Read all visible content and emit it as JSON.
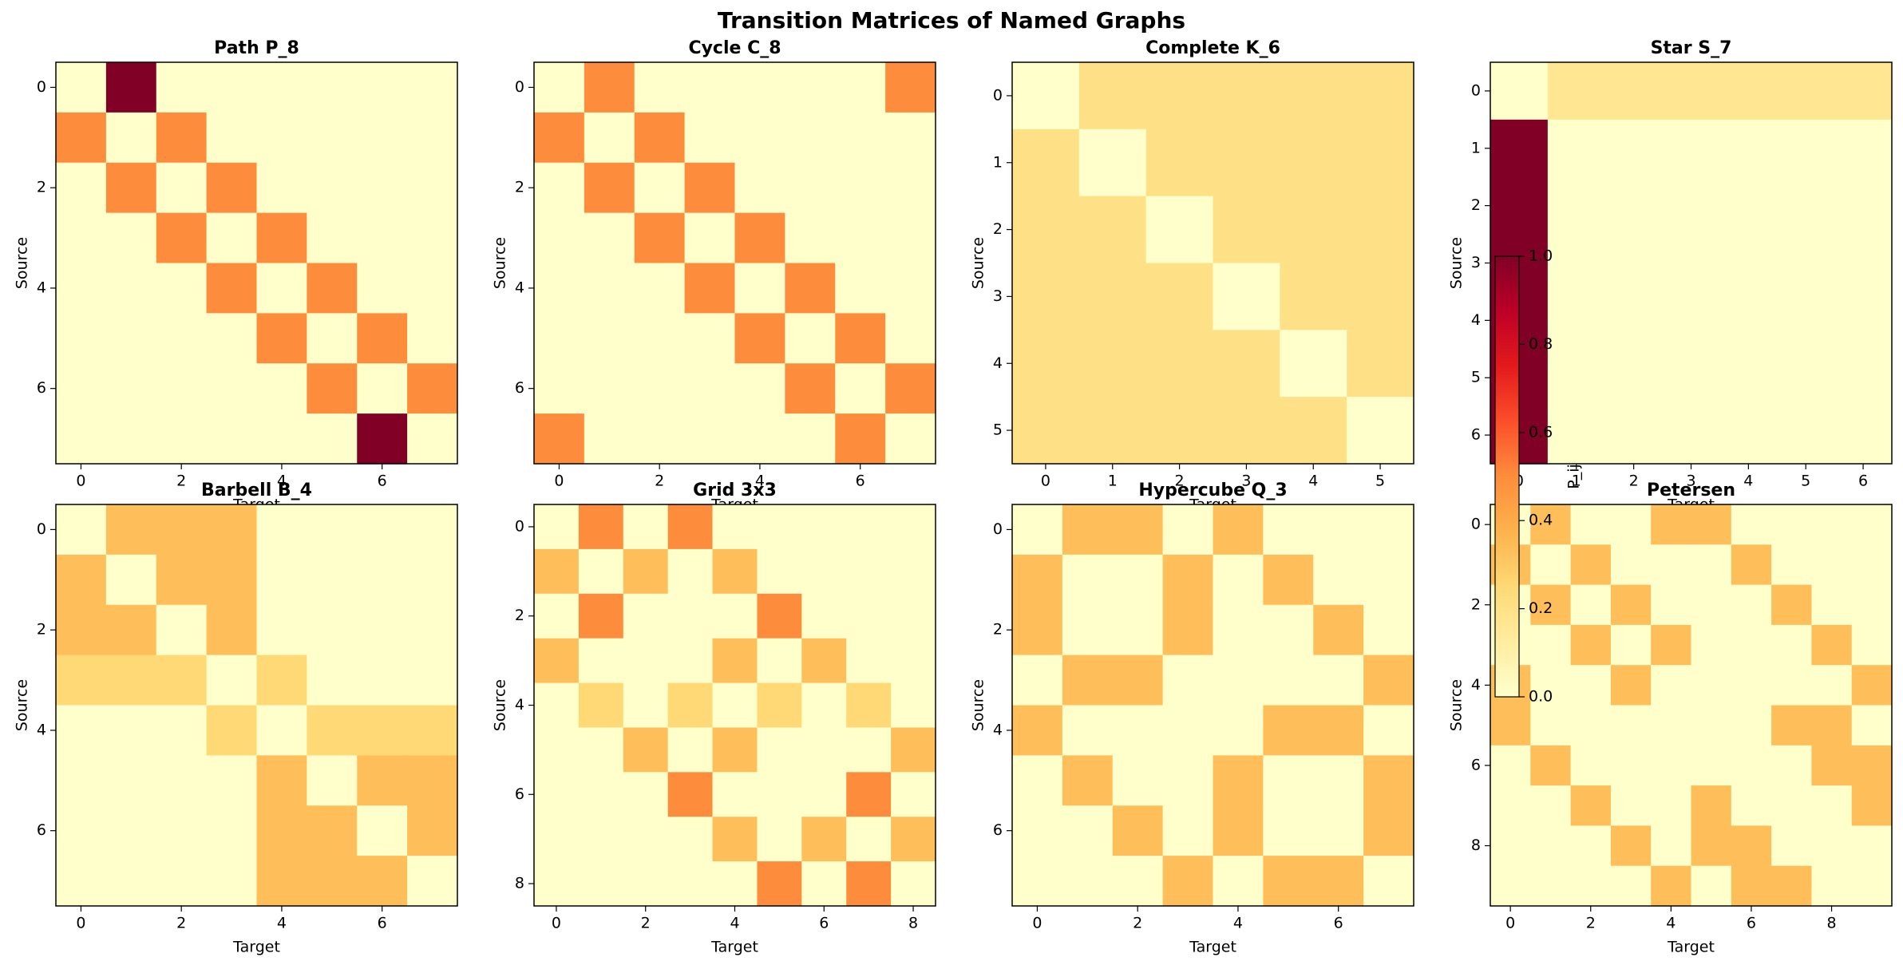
{
  "title": "Transition Matrices of Named Graphs",
  "colorbar": {
    "label": "P_ij",
    "colormap": "YlOrRd",
    "lim": [
      0,
      1
    ],
    "ticks": [
      {
        "value": 0,
        "label": "0.0"
      },
      {
        "value": 0.2,
        "label": "0.2"
      },
      {
        "value": 0.4,
        "label": "0.4"
      },
      {
        "value": 0.6,
        "label": "0.6"
      },
      {
        "value": 0.8,
        "label": "0.8"
      },
      {
        "value": 1,
        "label": "1.0"
      }
    ]
  },
  "chart_data": [
    {
      "type": "heatmap",
      "title": "Path P_8",
      "xlabel": "Target",
      "ylabel": "Source",
      "xlim": [
        -0.5,
        7.5
      ],
      "ylim": [
        7.5,
        -0.5
      ],
      "xticks": [
        0,
        2,
        4,
        6
      ],
      "yticks": [
        0,
        2,
        4,
        6
      ],
      "matrix": [
        [
          0,
          1,
          0,
          0,
          0,
          0,
          0,
          0
        ],
        [
          0.5,
          0,
          0.5,
          0,
          0,
          0,
          0,
          0
        ],
        [
          0,
          0.5,
          0,
          0.5,
          0,
          0,
          0,
          0
        ],
        [
          0,
          0,
          0.5,
          0,
          0.5,
          0,
          0,
          0
        ],
        [
          0,
          0,
          0,
          0.5,
          0,
          0.5,
          0,
          0
        ],
        [
          0,
          0,
          0,
          0,
          0.5,
          0,
          0.5,
          0
        ],
        [
          0,
          0,
          0,
          0,
          0,
          0.5,
          0,
          0.5
        ],
        [
          0,
          0,
          0,
          0,
          0,
          0,
          1,
          0
        ]
      ]
    },
    {
      "type": "heatmap",
      "title": "Cycle C_8",
      "xlabel": "Target",
      "ylabel": "Source",
      "xlim": [
        -0.5,
        7.5
      ],
      "ylim": [
        7.5,
        -0.5
      ],
      "xticks": [
        0,
        2,
        4,
        6
      ],
      "yticks": [
        0,
        2,
        4,
        6
      ],
      "matrix": [
        [
          0,
          0.5,
          0,
          0,
          0,
          0,
          0,
          0.5
        ],
        [
          0.5,
          0,
          0.5,
          0,
          0,
          0,
          0,
          0
        ],
        [
          0,
          0.5,
          0,
          0.5,
          0,
          0,
          0,
          0
        ],
        [
          0,
          0,
          0.5,
          0,
          0.5,
          0,
          0,
          0
        ],
        [
          0,
          0,
          0,
          0.5,
          0,
          0.5,
          0,
          0
        ],
        [
          0,
          0,
          0,
          0,
          0.5,
          0,
          0.5,
          0
        ],
        [
          0,
          0,
          0,
          0,
          0,
          0.5,
          0,
          0.5
        ],
        [
          0.5,
          0,
          0,
          0,
          0,
          0,
          0.5,
          0
        ]
      ]
    },
    {
      "type": "heatmap",
      "title": "Complete K_6",
      "xlabel": "Target",
      "ylabel": "Source",
      "xlim": [
        -0.5,
        5.5
      ],
      "ylim": [
        5.5,
        -0.5
      ],
      "xticks": [
        0,
        1,
        2,
        3,
        4,
        5
      ],
      "yticks": [
        0,
        1,
        2,
        3,
        4,
        5
      ],
      "matrix": [
        [
          0,
          0.2,
          0.2,
          0.2,
          0.2,
          0.2
        ],
        [
          0.2,
          0,
          0.2,
          0.2,
          0.2,
          0.2
        ],
        [
          0.2,
          0.2,
          0,
          0.2,
          0.2,
          0.2
        ],
        [
          0.2,
          0.2,
          0.2,
          0,
          0.2,
          0.2
        ],
        [
          0.2,
          0.2,
          0.2,
          0.2,
          0,
          0.2
        ],
        [
          0.2,
          0.2,
          0.2,
          0.2,
          0.2,
          0
        ]
      ]
    },
    {
      "type": "heatmap",
      "title": "Star S_7",
      "xlabel": "Target",
      "ylabel": "Source",
      "xlim": [
        -0.5,
        6.5
      ],
      "ylim": [
        6.5,
        -0.5
      ],
      "xticks": [
        0,
        1,
        2,
        3,
        4,
        5,
        6
      ],
      "yticks": [
        0,
        1,
        2,
        3,
        4,
        5,
        6
      ],
      "matrix": [
        [
          0,
          0.167,
          0.167,
          0.167,
          0.167,
          0.167,
          0.167
        ],
        [
          1,
          0,
          0,
          0,
          0,
          0,
          0
        ],
        [
          1,
          0,
          0,
          0,
          0,
          0,
          0
        ],
        [
          1,
          0,
          0,
          0,
          0,
          0,
          0
        ],
        [
          1,
          0,
          0,
          0,
          0,
          0,
          0
        ],
        [
          1,
          0,
          0,
          0,
          0,
          0,
          0
        ],
        [
          1,
          0,
          0,
          0,
          0,
          0,
          0
        ]
      ]
    },
    {
      "type": "heatmap",
      "title": "Barbell B_4",
      "xlabel": "Target",
      "ylabel": "Source",
      "xlim": [
        -0.5,
        7.5
      ],
      "ylim": [
        7.5,
        -0.5
      ],
      "xticks": [
        0,
        2,
        4,
        6
      ],
      "yticks": [
        0,
        2,
        4,
        6
      ],
      "matrix": [
        [
          0,
          0.333,
          0.333,
          0.333,
          0,
          0,
          0,
          0
        ],
        [
          0.333,
          0,
          0.333,
          0.333,
          0,
          0,
          0,
          0
        ],
        [
          0.333,
          0.333,
          0,
          0.333,
          0,
          0,
          0,
          0
        ],
        [
          0.25,
          0.25,
          0.25,
          0,
          0.25,
          0,
          0,
          0
        ],
        [
          0,
          0,
          0,
          0.25,
          0,
          0.25,
          0.25,
          0.25
        ],
        [
          0,
          0,
          0,
          0,
          0.333,
          0,
          0.333,
          0.333
        ],
        [
          0,
          0,
          0,
          0,
          0.333,
          0.333,
          0,
          0.333
        ],
        [
          0,
          0,
          0,
          0,
          0.333,
          0.333,
          0.333,
          0
        ]
      ]
    },
    {
      "type": "heatmap",
      "title": "Grid 3x3",
      "xlabel": "Target",
      "ylabel": "Source",
      "xlim": [
        -0.5,
        8.5
      ],
      "ylim": [
        8.5,
        -0.5
      ],
      "xticks": [
        0,
        2,
        4,
        6,
        8
      ],
      "yticks": [
        0,
        2,
        4,
        6,
        8
      ],
      "matrix": [
        [
          0,
          0.5,
          0,
          0.5,
          0,
          0,
          0,
          0,
          0
        ],
        [
          0.333,
          0,
          0.333,
          0,
          0.333,
          0,
          0,
          0,
          0
        ],
        [
          0,
          0.5,
          0,
          0,
          0,
          0.5,
          0,
          0,
          0
        ],
        [
          0.333,
          0,
          0,
          0,
          0.333,
          0,
          0.333,
          0,
          0
        ],
        [
          0,
          0.25,
          0,
          0.25,
          0,
          0.25,
          0,
          0.25,
          0
        ],
        [
          0,
          0,
          0.333,
          0,
          0.333,
          0,
          0,
          0,
          0.333
        ],
        [
          0,
          0,
          0,
          0.5,
          0,
          0,
          0,
          0.5,
          0
        ],
        [
          0,
          0,
          0,
          0,
          0.333,
          0,
          0.333,
          0,
          0.333
        ],
        [
          0,
          0,
          0,
          0,
          0,
          0.5,
          0,
          0.5,
          0
        ]
      ]
    },
    {
      "type": "heatmap",
      "title": "Hypercube Q_3",
      "xlabel": "Target",
      "ylabel": "Source",
      "xlim": [
        -0.5,
        7.5
      ],
      "ylim": [
        7.5,
        -0.5
      ],
      "xticks": [
        0,
        2,
        4,
        6
      ],
      "yticks": [
        0,
        2,
        4,
        6
      ],
      "matrix": [
        [
          0,
          0.333,
          0.333,
          0,
          0.333,
          0,
          0,
          0
        ],
        [
          0.333,
          0,
          0,
          0.333,
          0,
          0.333,
          0,
          0
        ],
        [
          0.333,
          0,
          0,
          0.333,
          0,
          0,
          0.333,
          0
        ],
        [
          0,
          0.333,
          0.333,
          0,
          0,
          0,
          0,
          0.333
        ],
        [
          0.333,
          0,
          0,
          0,
          0,
          0.333,
          0.333,
          0
        ],
        [
          0,
          0.333,
          0,
          0,
          0.333,
          0,
          0,
          0.333
        ],
        [
          0,
          0,
          0.333,
          0,
          0.333,
          0,
          0,
          0.333
        ],
        [
          0,
          0,
          0,
          0.333,
          0,
          0.333,
          0.333,
          0
        ]
      ]
    },
    {
      "type": "heatmap",
      "title": "Petersen",
      "xlabel": "Target",
      "ylabel": "Source",
      "xlim": [
        -0.5,
        9.5
      ],
      "ylim": [
        9.5,
        -0.5
      ],
      "xticks": [
        0,
        2,
        4,
        6,
        8
      ],
      "yticks": [
        0,
        2,
        4,
        6,
        8
      ],
      "matrix": [
        [
          0,
          0.333,
          0,
          0,
          0.333,
          0.333,
          0,
          0,
          0,
          0
        ],
        [
          0.333,
          0,
          0.333,
          0,
          0,
          0,
          0.333,
          0,
          0,
          0
        ],
        [
          0,
          0.333,
          0,
          0.333,
          0,
          0,
          0,
          0.333,
          0,
          0
        ],
        [
          0,
          0,
          0.333,
          0,
          0.333,
          0,
          0,
          0,
          0.333,
          0
        ],
        [
          0.333,
          0,
          0,
          0.333,
          0,
          0,
          0,
          0,
          0,
          0.333
        ],
        [
          0.333,
          0,
          0,
          0,
          0,
          0,
          0,
          0.333,
          0.333,
          0
        ],
        [
          0,
          0.333,
          0,
          0,
          0,
          0,
          0,
          0,
          0.333,
          0.333
        ],
        [
          0,
          0,
          0.333,
          0,
          0,
          0.333,
          0,
          0,
          0,
          0.333
        ],
        [
          0,
          0,
          0,
          0.333,
          0,
          0.333,
          0.333,
          0,
          0,
          0
        ],
        [
          0,
          0,
          0,
          0,
          0.333,
          0,
          0.333,
          0.333,
          0,
          0
        ]
      ]
    }
  ]
}
